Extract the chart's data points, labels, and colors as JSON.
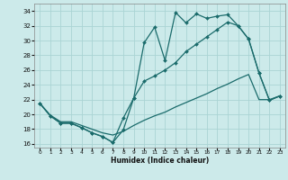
{
  "bg_color": "#cceaea",
  "grid_color": "#aad4d4",
  "line_color": "#1a6b6b",
  "xlabel": "Humidex (Indice chaleur)",
  "xlim": [
    -0.5,
    23.5
  ],
  "ylim": [
    15.5,
    35.0
  ],
  "xticks": [
    0,
    1,
    2,
    3,
    4,
    5,
    6,
    7,
    8,
    9,
    10,
    11,
    12,
    13,
    14,
    15,
    16,
    17,
    18,
    19,
    20,
    21,
    22,
    23
  ],
  "yticks": [
    16,
    18,
    20,
    22,
    24,
    26,
    28,
    30,
    32,
    34
  ],
  "line1_x": [
    0,
    1,
    2,
    3,
    4,
    5,
    6,
    7,
    8,
    9,
    10,
    11,
    12,
    13,
    14,
    15,
    16,
    17,
    18,
    19,
    20,
    21,
    22,
    23
  ],
  "line1_y": [
    21.5,
    19.8,
    18.8,
    18.8,
    18.2,
    17.5,
    17.0,
    16.2,
    17.9,
    22.2,
    29.7,
    31.8,
    27.3,
    33.8,
    32.4,
    33.6,
    33.0,
    33.3,
    33.5,
    32.0,
    30.2,
    25.6,
    21.9,
    22.5
  ],
  "line2_x": [
    0,
    1,
    2,
    3,
    4,
    5,
    6,
    7,
    8,
    9,
    10,
    11,
    12,
    13,
    14,
    15,
    16,
    17,
    18,
    19,
    20,
    21,
    22,
    23
  ],
  "line2_y": [
    21.5,
    19.8,
    18.8,
    18.8,
    18.2,
    17.5,
    17.0,
    16.2,
    19.5,
    22.2,
    24.5,
    25.2,
    26.0,
    27.0,
    28.5,
    29.5,
    30.5,
    31.5,
    32.5,
    32.0,
    30.2,
    25.6,
    21.9,
    22.5
  ],
  "line3_x": [
    0,
    23
  ],
  "line3_y": [
    21.5,
    22.5
  ],
  "line3b_x": [
    0,
    1,
    2,
    3,
    4,
    5,
    6,
    7,
    8,
    9,
    10,
    11,
    12,
    13,
    14,
    15,
    16,
    17,
    18,
    19,
    20,
    21,
    22,
    23
  ],
  "line3b_y": [
    21.5,
    19.9,
    19.0,
    19.0,
    18.5,
    18.0,
    17.5,
    17.2,
    17.7,
    18.5,
    19.2,
    19.8,
    20.3,
    21.0,
    21.6,
    22.2,
    22.8,
    23.5,
    24.1,
    24.8,
    25.4,
    22.0,
    22.0,
    22.5
  ]
}
